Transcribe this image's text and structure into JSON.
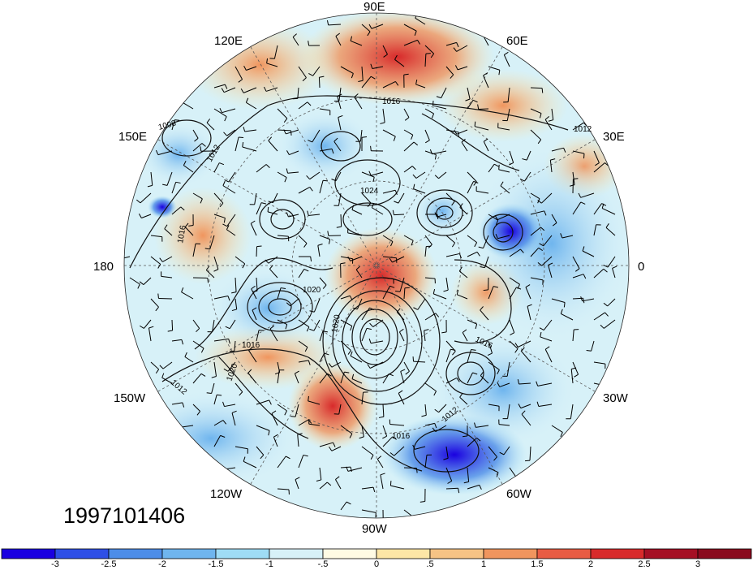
{
  "title": "",
  "timestamp": "1997101406",
  "longitude_labels": {
    "lon_90e": "90E",
    "lon_120e": "120E",
    "lon_60e": "60E",
    "lon_150e": "150E",
    "lon_30e": "30E",
    "lon_180": "180",
    "lon_0": "0",
    "lon_150w": "150W",
    "lon_30w": "30W",
    "lon_120w": "120W",
    "lon_60w": "60W",
    "lon_90w": "90W"
  },
  "contour_labels": [
    "1008",
    "1012",
    "1016",
    "1016",
    "1012",
    "1024",
    "1020",
    "1016",
    "1020",
    "1012",
    "1016",
    "1016",
    "1012",
    "1020"
  ],
  "colorbar": {
    "ticks": [
      "-3",
      "-2.5",
      "-2",
      "-1.5",
      "-1",
      "-.5",
      "0",
      ".5",
      "1",
      "1.5",
      "2",
      "2.5",
      "3"
    ],
    "colors": [
      "#1a00e0",
      "#2e4fe6",
      "#4d8de8",
      "#6fb5ee",
      "#9fdcf5",
      "#d7f1f8",
      "#fffbe4",
      "#fde6a6",
      "#f6c385",
      "#f0955e",
      "#e85c44",
      "#d82a2b",
      "#a50f24",
      "#8a0a1e"
    ]
  }
}
